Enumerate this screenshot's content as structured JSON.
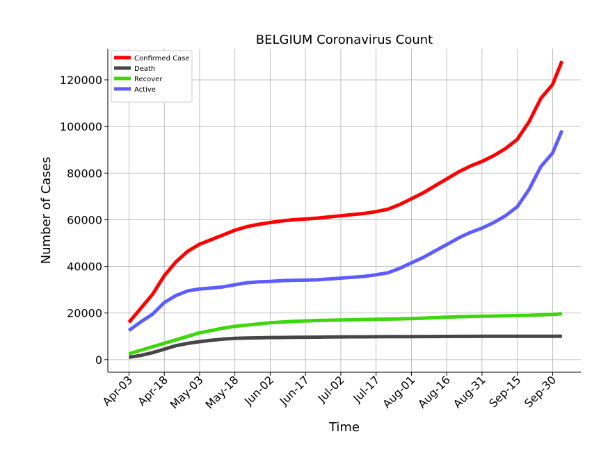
{
  "chart_data": {
    "type": "line",
    "title": "BELGIUM Coronavirus Count",
    "x_label": "Time",
    "y_label": "Number of Cases",
    "x": [
      "Apr-03",
      "Apr-08",
      "Apr-13",
      "Apr-18",
      "Apr-23",
      "Apr-28",
      "May-03",
      "May-08",
      "May-13",
      "May-18",
      "May-23",
      "May-28",
      "Jun-02",
      "Jun-07",
      "Jun-12",
      "Jun-17",
      "Jun-22",
      "Jun-27",
      "Jul-02",
      "Jul-07",
      "Jul-12",
      "Jul-17",
      "Jul-22",
      "Jul-27",
      "Aug-01",
      "Aug-06",
      "Aug-11",
      "Aug-16",
      "Aug-21",
      "Aug-26",
      "Aug-31",
      "Sep-05",
      "Sep-10",
      "Sep-15",
      "Sep-20",
      "Sep-25",
      "Sep-30",
      "Oct-04"
    ],
    "series": [
      {
        "name": "Confirmed Case",
        "color": "#ff0000",
        "values": [
          16000,
          22000,
          28000,
          36000,
          42000,
          46500,
          49500,
          51500,
          53500,
          55500,
          57000,
          58000,
          58800,
          59500,
          60000,
          60300,
          60700,
          61200,
          61700,
          62200,
          62700,
          63500,
          64500,
          66500,
          69000,
          71500,
          74500,
          77500,
          80500,
          83000,
          85000,
          87500,
          90500,
          94500,
          102000,
          112000,
          118000,
          128000
        ]
      },
      {
        "name": "Death",
        "color": "#464646",
        "values": [
          1000,
          1800,
          3000,
          4500,
          6000,
          7000,
          7700,
          8300,
          8800,
          9100,
          9250,
          9350,
          9450,
          9500,
          9550,
          9600,
          9650,
          9700,
          9750,
          9780,
          9800,
          9820,
          9840,
          9860,
          9880,
          9900,
          9920,
          9940,
          9960,
          9980,
          10000,
          10000,
          10000,
          10000,
          10000,
          10000,
          10000,
          10050
        ]
      },
      {
        "name": "Recover",
        "color": "#3ed60f",
        "values": [
          2500,
          4000,
          5500,
          7000,
          8500,
          10000,
          11500,
          12500,
          13500,
          14300,
          14800,
          15300,
          15800,
          16100,
          16400,
          16600,
          16800,
          16900,
          17000,
          17100,
          17200,
          17300,
          17400,
          17500,
          17600,
          17800,
          18000,
          18200,
          18400,
          18500,
          18600,
          18700,
          18800,
          18900,
          19000,
          19200,
          19400,
          19700
        ]
      },
      {
        "name": "Active",
        "color": "#5d5dff",
        "values": [
          12500,
          16200,
          19500,
          24500,
          27500,
          29500,
          30300,
          30700,
          31200,
          32100,
          32950,
          33350,
          33550,
          33900,
          34050,
          34100,
          34250,
          34600,
          34950,
          35320,
          35700,
          36380,
          37260,
          39140,
          41520,
          43800,
          46580,
          49360,
          52140,
          54520,
          56400,
          58800,
          61700,
          65600,
          73000,
          82800,
          88600,
          98250
        ]
      }
    ],
    "xlim": [
      "Mar-25",
      "Oct-12"
    ],
    "xticks": [
      "Apr-03",
      "Apr-18",
      "May-03",
      "May-18",
      "Jun-02",
      "Jun-17",
      "Jul-02",
      "Jul-17",
      "Aug-01",
      "Aug-16",
      "Aug-31",
      "Sep-15",
      "Sep-30"
    ],
    "ylim": [
      -5400,
      133400
    ],
    "yticks": [
      0,
      20000,
      40000,
      60000,
      80000,
      100000,
      120000
    ],
    "grid": true,
    "legend": "upper left"
  }
}
